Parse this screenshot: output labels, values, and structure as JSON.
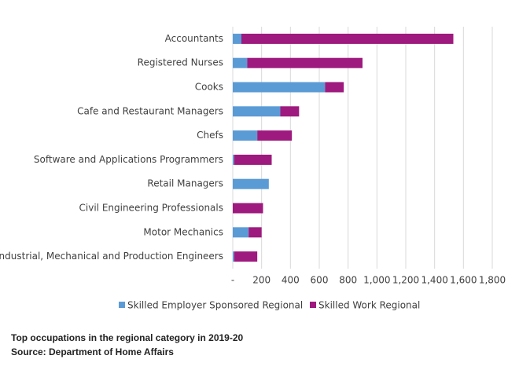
{
  "chart_data": {
    "type": "stacked-bar-horizontal",
    "categories": [
      "Accountants",
      "Registered Nurses",
      "Cooks",
      "Cafe and Restaurant Managers",
      "Chefs",
      "Software and Applications Programmers",
      "Retail Managers",
      "Civil Engineering Professionals",
      "Motor Mechanics",
      "Industrial, Mechanical and Production Engineers"
    ],
    "series": [
      {
        "name": "Skilled Employer Sponsored Regional",
        "color": "#5b9bd5",
        "values": [
          60,
          100,
          640,
          330,
          170,
          10,
          250,
          0,
          110,
          10
        ]
      },
      {
        "name": "Skilled Work Regional",
        "color": "#9e1a7e",
        "values": [
          1470,
          800,
          130,
          130,
          240,
          260,
          0,
          210,
          90,
          160
        ]
      }
    ],
    "xlim": [
      0,
      1800
    ],
    "xticks": [
      {
        "value": 0,
        "label": "-"
      },
      200,
      400,
      600,
      800,
      {
        "value": 1000,
        "label": "1,000"
      },
      {
        "value": 1200,
        "label": "1,200"
      },
      {
        "value": 1400,
        "label": "1,400"
      },
      {
        "value": 1600,
        "label": "1,600"
      },
      {
        "value": 1800,
        "label": "1,800"
      }
    ],
    "grid": true,
    "legend": "bottom",
    "caption": "Top occupations in the regional category in 2019-20",
    "source": "Source: Department of Home Affairs"
  }
}
